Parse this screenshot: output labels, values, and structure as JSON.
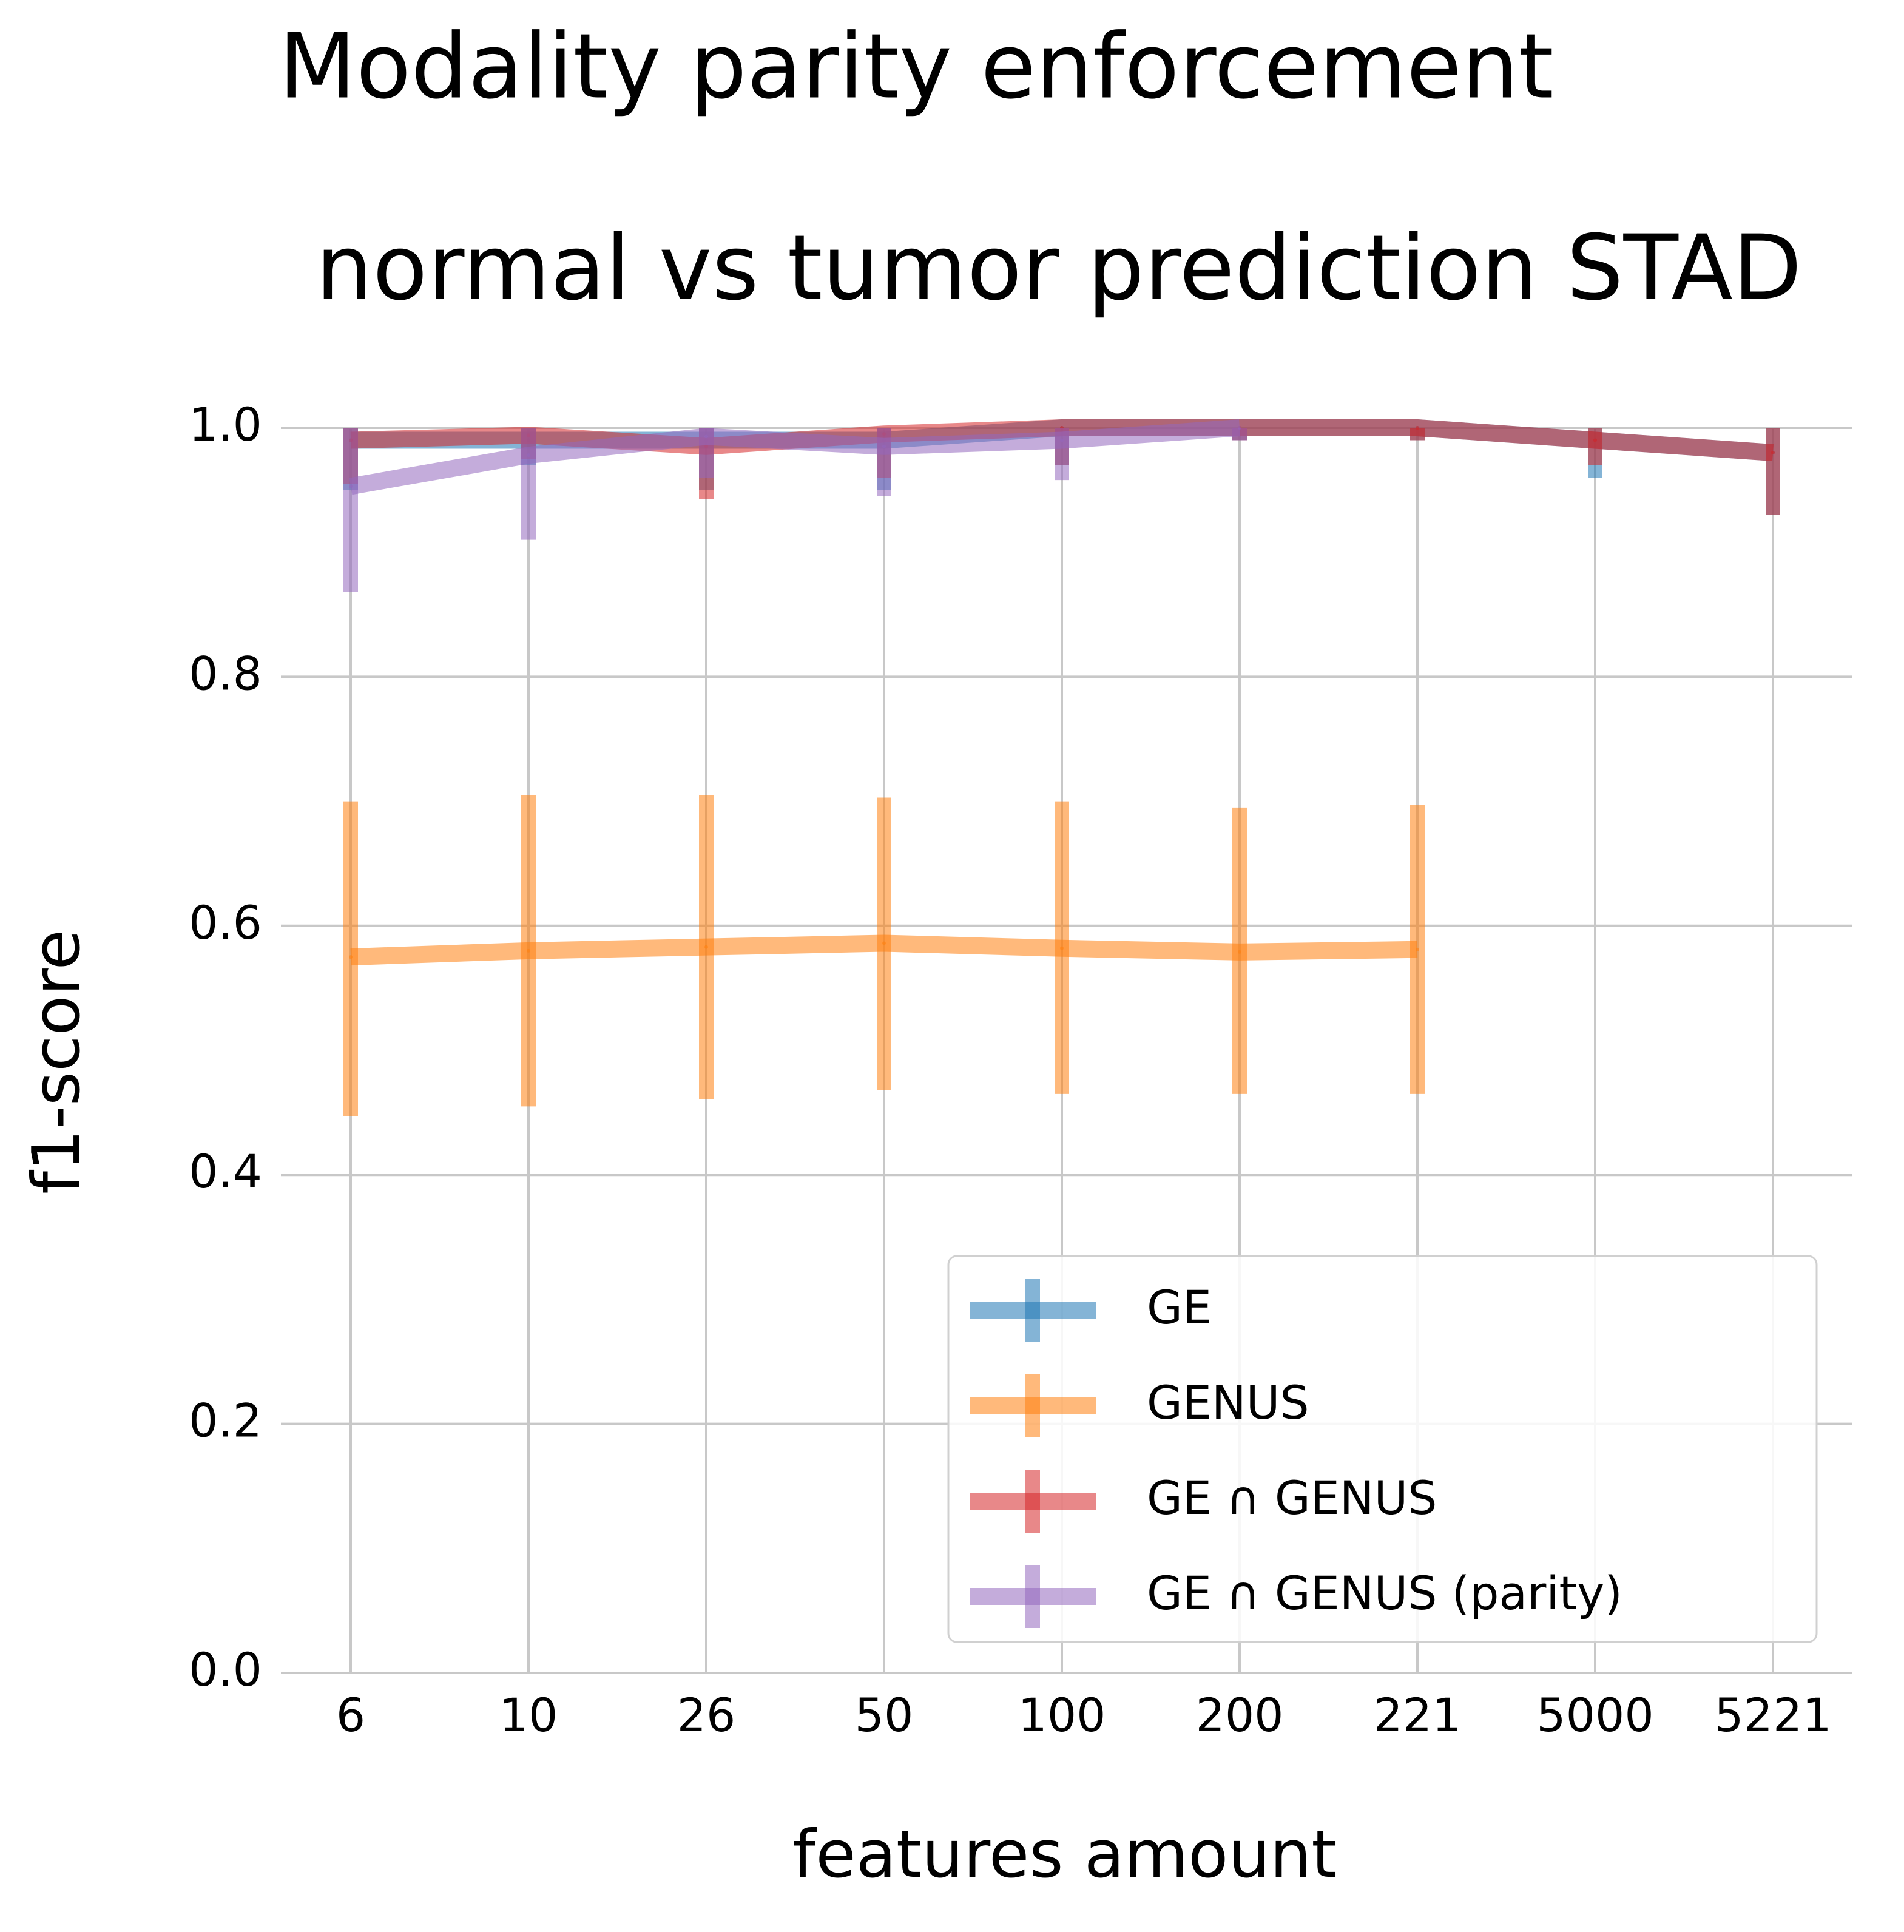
{
  "chart_data": {
    "type": "line",
    "title": "Modality parity enforcement",
    "subtitle": "normal vs tumor prediction STAD",
    "xlabel": "features amount",
    "ylabel": "f1-score",
    "categories": [
      "6",
      "10",
      "26",
      "50",
      "100",
      "200",
      "221",
      "5000",
      "5221"
    ],
    "ylim": [
      0,
      1.0
    ],
    "yticks": [
      "0.0",
      "0.2",
      "0.4",
      "0.6",
      "0.8",
      "1.0"
    ],
    "grid": true,
    "legend_position": "lower-right",
    "series": [
      {
        "name": "GE",
        "color": "#1f77b4",
        "values": [
          0.99,
          0.99,
          0.99,
          0.99,
          1.0,
          1.0,
          1.0,
          0.99,
          0.98
        ],
        "err_low": [
          0.95,
          0.97,
          0.95,
          0.95,
          0.97,
          0.99,
          0.99,
          0.96,
          0.93
        ],
        "err_high": [
          1.0,
          1.0,
          1.0,
          1.0,
          1.0,
          1.0,
          1.0,
          1.0,
          1.0
        ]
      },
      {
        "name": "GENUS",
        "color": "#ff7f0e",
        "values": [
          0.575,
          0.58,
          0.583,
          0.586,
          0.582,
          0.579,
          0.581,
          null,
          null
        ],
        "err_low": [
          0.447,
          0.455,
          0.461,
          0.468,
          0.465,
          0.465,
          0.465,
          null,
          null
        ],
        "err_high": [
          0.7,
          0.705,
          0.705,
          0.703,
          0.7,
          0.695,
          0.697,
          null,
          null
        ]
      },
      {
        "name": "GE ∩ GENUS",
        "color": "#d62728",
        "values": [
          0.99,
          0.994,
          0.985,
          0.995,
          1.0,
          1.0,
          1.0,
          0.99,
          0.98
        ],
        "err_low": [
          0.955,
          0.975,
          0.943,
          0.96,
          0.97,
          0.99,
          0.99,
          0.97,
          0.93
        ],
        "err_high": [
          1.0,
          1.0,
          1.0,
          1.0,
          1.0,
          1.0,
          1.0,
          1.0,
          1.0
        ]
      },
      {
        "name": "GE ∩ GENUS (parity)",
        "color": "#9467bd",
        "values": [
          0.953,
          0.978,
          0.993,
          0.985,
          0.99,
          1.0,
          null,
          null,
          null
        ],
        "err_low": [
          0.868,
          0.91,
          0.96,
          0.945,
          0.958,
          0.99,
          null,
          null,
          null
        ],
        "err_high": [
          1.0,
          1.0,
          1.0,
          1.0,
          1.0,
          1.0,
          null,
          null,
          null
        ]
      }
    ]
  }
}
